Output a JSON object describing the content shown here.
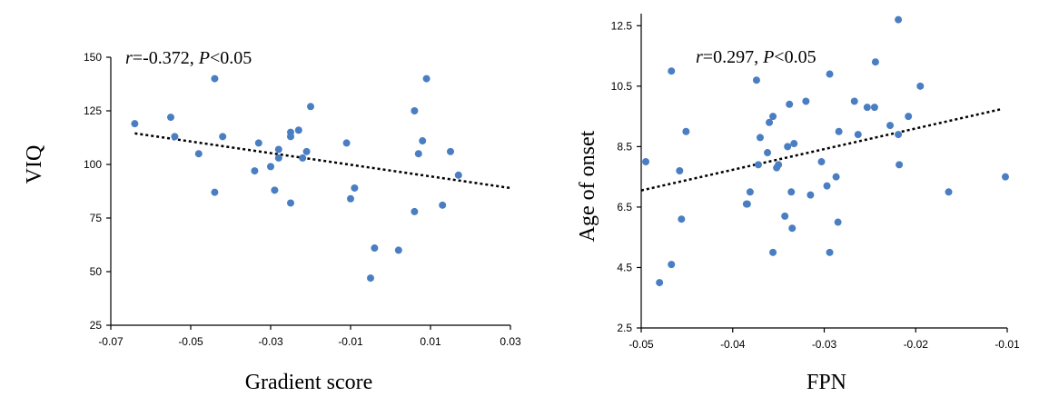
{
  "chart_data": [
    {
      "type": "scatter",
      "xlabel": "Gradient score",
      "ylabel": "VIQ",
      "annotation": {
        "r_symbol": "r",
        "r_value": "=-0.372, ",
        "p_symbol": "P",
        "p_value": "<0.05"
      },
      "xlim": [
        -0.07,
        0.03
      ],
      "ylim": [
        25,
        150
      ],
      "xticks": [
        -0.07,
        -0.05,
        -0.03,
        -0.01,
        0.01,
        0.03
      ],
      "xtick_labels": [
        "-0.07",
        "-0.05",
        "-0.03",
        "-0.01",
        "0.01",
        "0.03"
      ],
      "yticks": [
        25,
        50,
        75,
        100,
        125,
        150
      ],
      "ytick_labels": [
        "25",
        "50",
        "75",
        "100",
        "125",
        "150"
      ],
      "trendline": {
        "x": [
          -0.064,
          0.03
        ],
        "y": [
          114.5,
          89
        ]
      },
      "points": {
        "x": [
          -0.064,
          -0.055,
          -0.054,
          -0.048,
          -0.044,
          -0.044,
          -0.042,
          -0.034,
          -0.033,
          -0.03,
          -0.029,
          -0.028,
          -0.028,
          -0.025,
          -0.025,
          -0.025,
          -0.023,
          -0.022,
          -0.021,
          -0.02,
          -0.011,
          -0.01,
          -0.009,
          -0.005,
          -0.004,
          0.002,
          0.006,
          0.006,
          0.007,
          0.008,
          0.009,
          0.013,
          0.015,
          0.017
        ],
        "y": [
          119,
          122,
          113,
          105,
          140,
          87,
          113,
          97,
          110,
          99,
          88,
          107,
          103,
          82,
          113,
          115,
          116,
          103,
          106,
          127,
          110,
          84,
          89,
          47,
          61,
          60,
          78,
          125,
          105,
          111,
          140,
          81,
          106,
          95
        ]
      }
    },
    {
      "type": "scatter",
      "xlabel": "FPN",
      "ylabel": "Age of onset",
      "annotation": {
        "r_symbol": "r",
        "r_value": "=0.297, ",
        "p_symbol": "P",
        "p_value": "<0.05"
      },
      "xlim": [
        -0.05,
        -0.01
      ],
      "ylim": [
        2.5,
        12.9
      ],
      "xticks": [
        -0.05,
        -0.04,
        -0.03,
        -0.02,
        -0.01
      ],
      "xtick_labels": [
        "-0.05",
        "-0.04",
        "-0.03",
        "-0.02",
        "-0.01"
      ],
      "yticks": [
        2.5,
        4.5,
        6.5,
        8.5,
        10.5,
        12.5
      ],
      "ytick_labels": [
        "2.5",
        "4.5",
        "6.5",
        "8.5",
        "10.5",
        "12.5"
      ],
      "trendline": {
        "x": [
          -0.05,
          -0.0105
        ],
        "y": [
          7.05,
          9.75
        ]
      },
      "points": {
        "x": [
          -0.0495,
          -0.048,
          -0.0467,
          -0.0467,
          -0.0458,
          -0.0456,
          -0.0451,
          -0.0385,
          -0.0384,
          -0.0381,
          -0.0374,
          -0.0372,
          -0.037,
          -0.0362,
          -0.036,
          -0.0356,
          -0.0356,
          -0.0352,
          -0.035,
          -0.0343,
          -0.034,
          -0.0338,
          -0.0336,
          -0.0335,
          -0.0333,
          -0.032,
          -0.0315,
          -0.0303,
          -0.0297,
          -0.0294,
          -0.0294,
          -0.0287,
          -0.0285,
          -0.0284,
          -0.0267,
          -0.0263,
          -0.0253,
          -0.0245,
          -0.0244,
          -0.0228,
          -0.0219,
          -0.0219,
          -0.0218,
          -0.0208,
          -0.0195,
          -0.0164,
          -0.0102
        ],
        "y": [
          8.0,
          4.0,
          11.0,
          4.6,
          7.7,
          6.1,
          9.0,
          6.6,
          6.6,
          7.0,
          10.7,
          7.9,
          8.8,
          8.3,
          9.3,
          9.5,
          5.0,
          7.8,
          7.9,
          6.2,
          8.5,
          9.9,
          7.0,
          5.8,
          8.6,
          10.0,
          6.9,
          8.0,
          7.2,
          5.0,
          10.9,
          7.5,
          6.0,
          9.0,
          10.0,
          8.9,
          9.8,
          9.8,
          11.3,
          9.2,
          12.7,
          8.9,
          7.9,
          9.5,
          10.5,
          7.0,
          7.5
        ]
      }
    }
  ]
}
